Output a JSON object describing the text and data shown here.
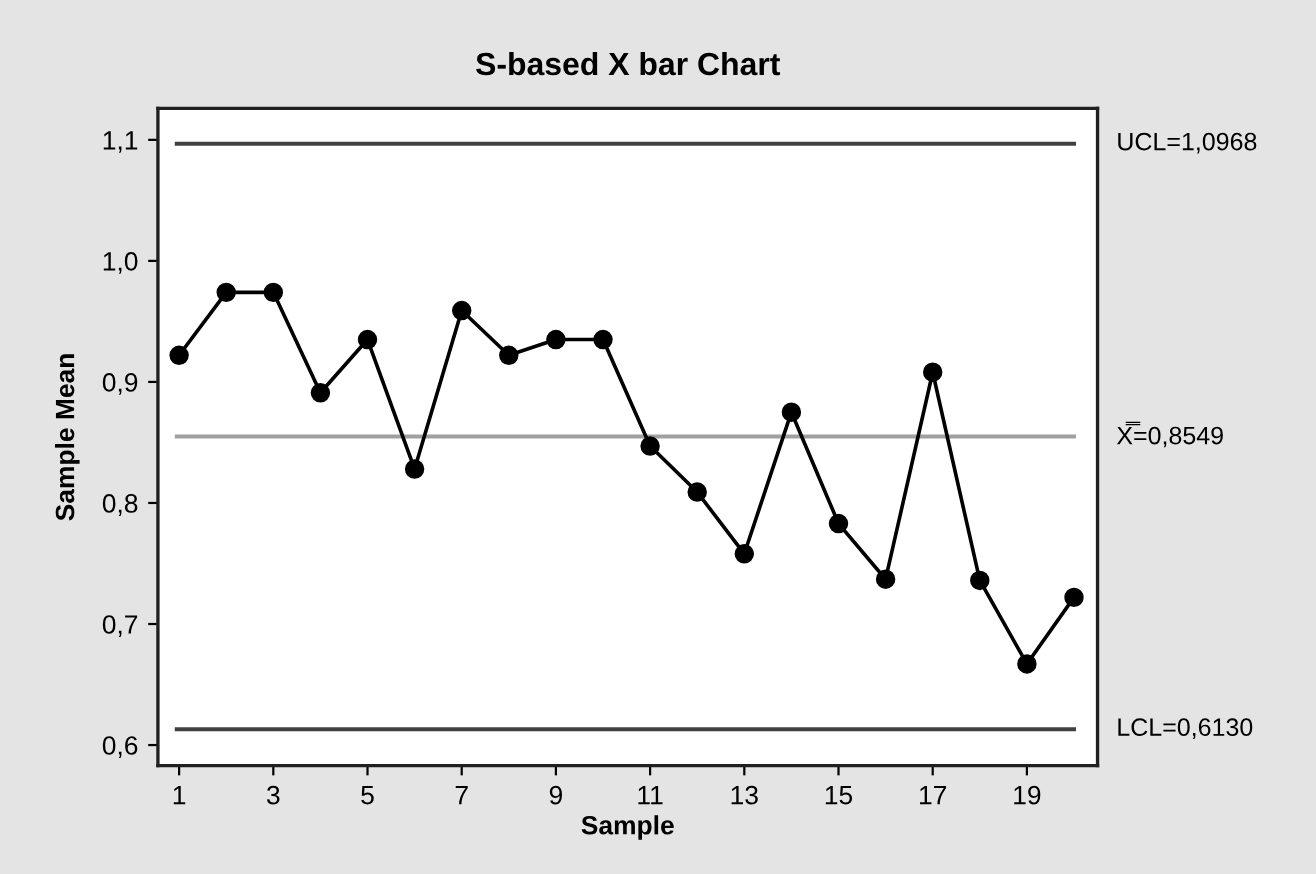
{
  "chart_data": {
    "type": "line",
    "title": "S-based X bar Chart",
    "xlabel": "Sample",
    "ylabel": "Sample Mean",
    "x": [
      1,
      2,
      3,
      4,
      5,
      6,
      7,
      8,
      9,
      10,
      11,
      12,
      13,
      14,
      15,
      16,
      17,
      18,
      19,
      20
    ],
    "series": [
      {
        "color": "#000000",
        "values": [
          0.922,
          0.974,
          0.974,
          0.891,
          0.935,
          0.828,
          0.959,
          0.922,
          0.935,
          0.935,
          0.847,
          0.809,
          0.758,
          0.875,
          0.783,
          0.737,
          0.908,
          0.736,
          0.667,
          0.722
        ]
      }
    ],
    "xlim": [
      0.55,
      20.5
    ],
    "xticks": [
      1,
      3,
      5,
      7,
      9,
      11,
      13,
      15,
      17,
      19
    ],
    "ylim": [
      0.583,
      1.126
    ],
    "yticks": [
      {
        "value": 0.6,
        "label": "0,6"
      },
      {
        "value": 0.7,
        "label": "0,7"
      },
      {
        "value": 0.8,
        "label": "0,8"
      },
      {
        "value": 0.9,
        "label": "0,9"
      },
      {
        "value": 1.0,
        "label": "1,0"
      },
      {
        "value": 1.1,
        "label": "1,1"
      }
    ],
    "ref_lines": [
      {
        "axis": "y",
        "value": 1.0968,
        "label": "UCL=1,0968",
        "color": "#404040"
      },
      {
        "axis": "y",
        "value": 0.8549,
        "label": "X̿=0,8549",
        "color": "#a0a0a0"
      },
      {
        "axis": "y",
        "value": 0.613,
        "label": "LCL=0,6130",
        "color": "#404040"
      }
    ],
    "marker": "circle",
    "line_style": "solid",
    "grid": false,
    "legend": false
  }
}
